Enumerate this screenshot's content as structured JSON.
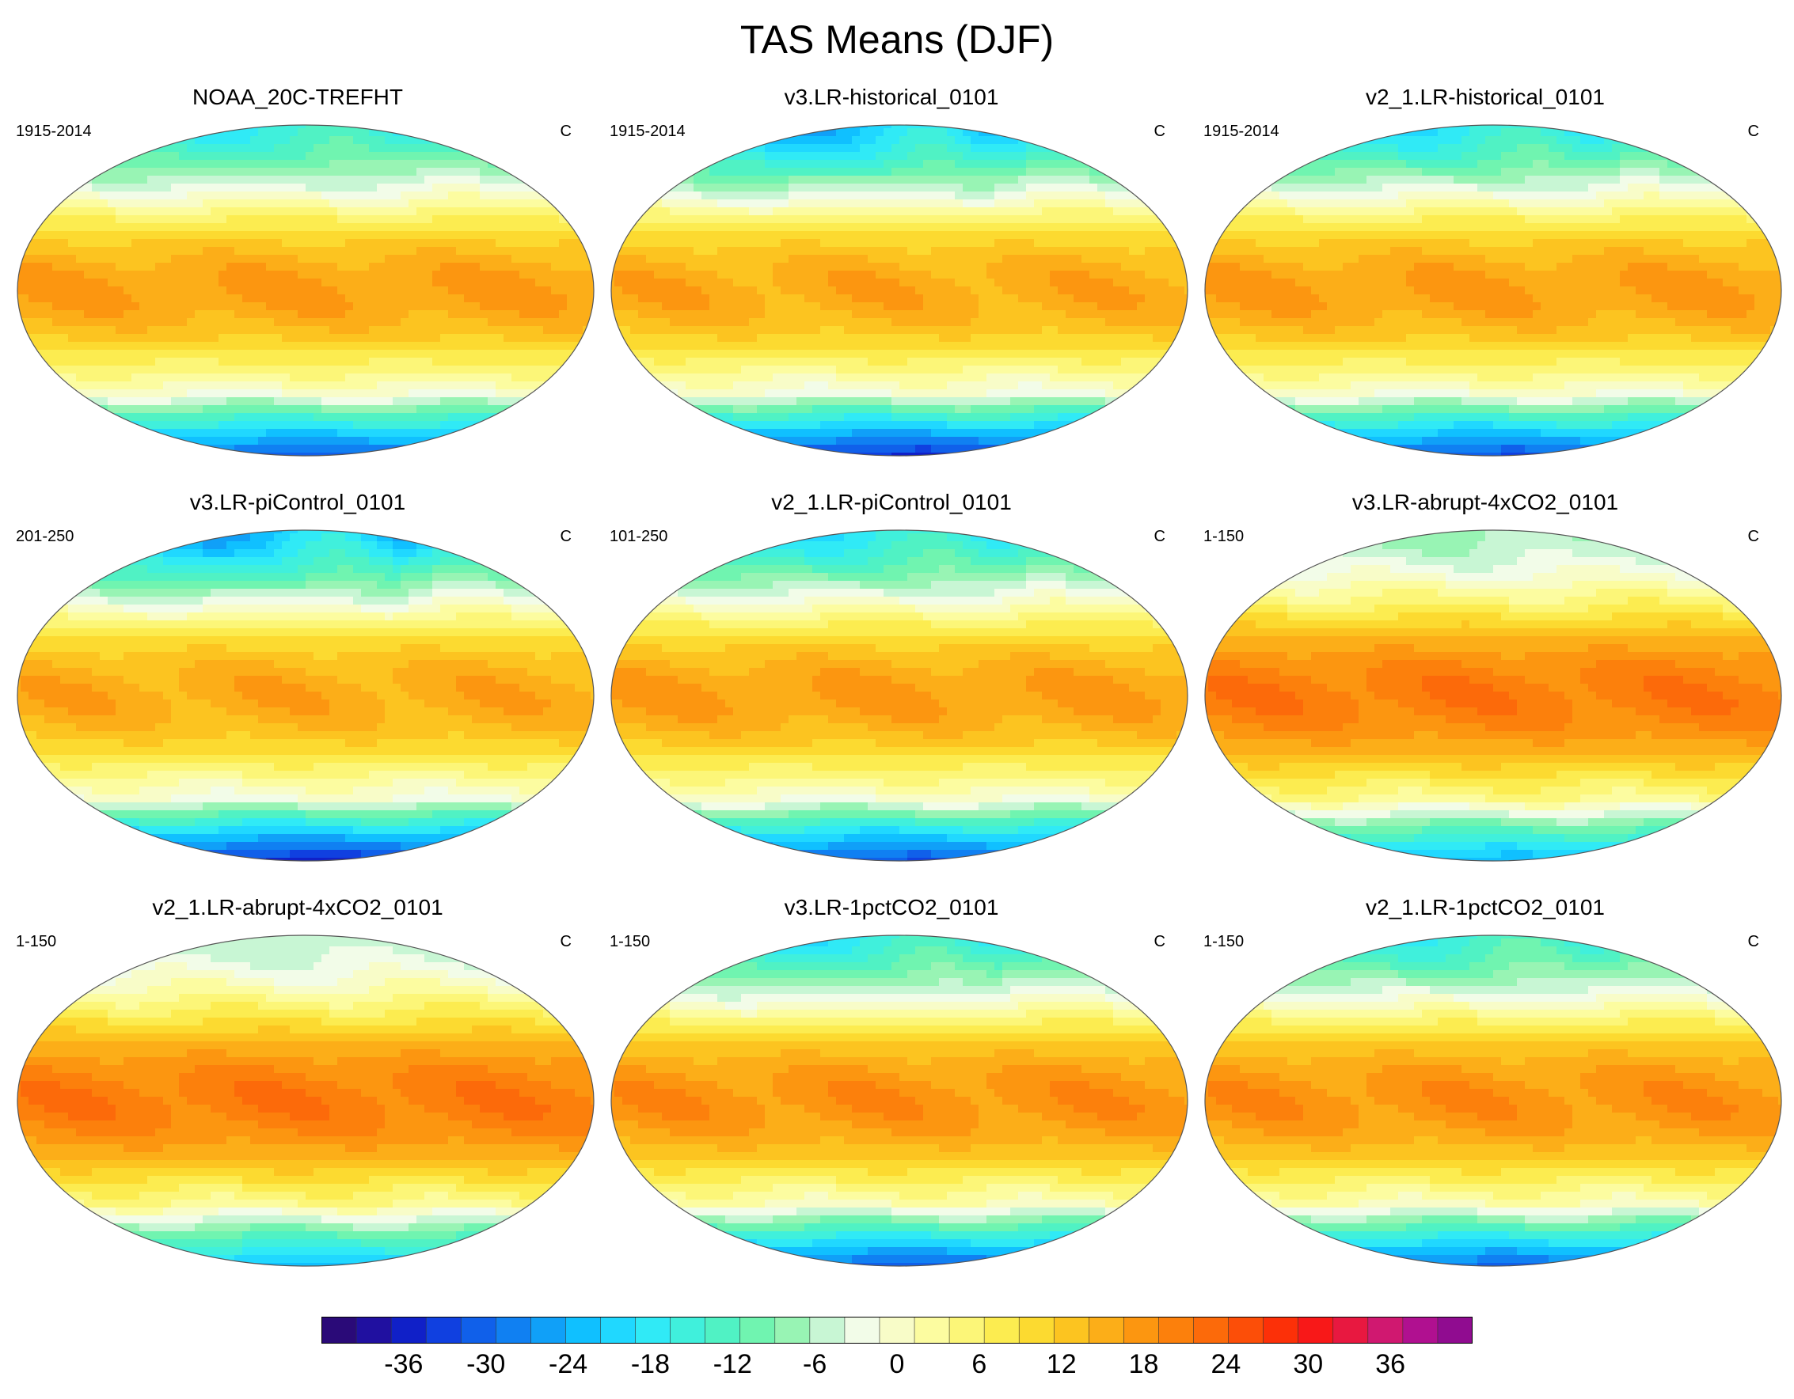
{
  "figure": {
    "title": "TAS Means (DJF)"
  },
  "chart_data": {
    "type": "heatmap",
    "title": "TAS Means (DJF)",
    "variable": "TAS",
    "season": "DJF",
    "units": "C",
    "projection": "Robinson (global, Pacific-centered)",
    "panels": [
      {
        "title": "NOAA_20C-TREFHT",
        "period": "1915-2014",
        "units": "C"
      },
      {
        "title": "v3.LR-historical_0101",
        "period": "1915-2014",
        "units": "C"
      },
      {
        "title": "v2_1.LR-historical_0101",
        "period": "1915-2014",
        "units": "C"
      },
      {
        "title": "v3.LR-piControl_0101",
        "period": "201-250",
        "units": "C"
      },
      {
        "title": "v2_1.LR-piControl_0101",
        "period": "101-250",
        "units": "C"
      },
      {
        "title": "v3.LR-abrupt-4xCO2_0101",
        "period": "1-150",
        "units": "C"
      },
      {
        "title": "v2_1.LR-abrupt-4xCO2_0101",
        "period": "1-150",
        "units": "C"
      },
      {
        "title": "v3.LR-1pctCO2_0101",
        "period": "1-150",
        "units": "C"
      },
      {
        "title": "v2_1.LR-1pctCO2_0101",
        "period": "1-150",
        "units": "C"
      }
    ],
    "colorbar": {
      "min": -42,
      "max": 42,
      "step": 3,
      "tick_labels": [
        "-36",
        "-30",
        "-24",
        "-18",
        "-12",
        "-6",
        "0",
        "6",
        "12",
        "18",
        "24",
        "30",
        "36"
      ],
      "tick_values": [
        -36,
        -30,
        -24,
        -18,
        -12,
        -6,
        0,
        6,
        12,
        18,
        24,
        30,
        36
      ],
      "colors": [
        "#2a0a78",
        "#2010a0",
        "#1020c8",
        "#1040e0",
        "#1060ea",
        "#1080f2",
        "#10a0f8",
        "#10c0ff",
        "#20d8ff",
        "#30eaf6",
        "#40f0dc",
        "#50f2c4",
        "#70f4b0",
        "#98f4b4",
        "#c8f6d4",
        "#f2fce8",
        "#f8fcc8",
        "#fcfca0",
        "#fcf678",
        "#fcec50",
        "#fcda30",
        "#fcc420",
        "#fcae18",
        "#fc9610",
        "#fc800c",
        "#fc6a0a",
        "#fc4e08",
        "#fc3008",
        "#f81818",
        "#e81840",
        "#d01870",
        "#b01090",
        "#900c90"
      ]
    }
  }
}
